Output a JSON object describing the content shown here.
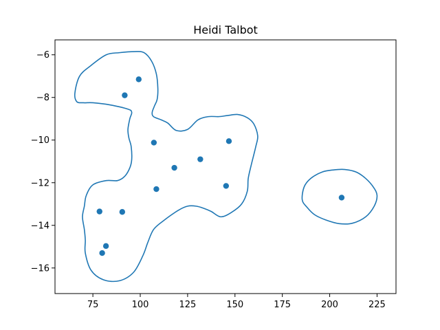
{
  "chart_data": {
    "type": "scatter",
    "title": "Heidi Talbot",
    "xlabel": "",
    "ylabel": "",
    "xlim": [
      55,
      235
    ],
    "ylim": [
      -17.2,
      -5.3
    ],
    "xticks": [
      75,
      100,
      125,
      150,
      175,
      200,
      225
    ],
    "yticks": [
      -16,
      -14,
      -12,
      -10,
      -8,
      -6
    ],
    "xtick_labels": [
      "75",
      "100",
      "125",
      "150",
      "175",
      "200",
      "225"
    ],
    "ytick_labels": [
      "−16",
      "−14",
      "−12",
      "−10",
      "−8",
      "−6"
    ],
    "grid": false,
    "color": "#1f77b4",
    "points": [
      {
        "x": 99.2,
        "y": -7.15
      },
      {
        "x": 91.8,
        "y": -7.9
      },
      {
        "x": 107.2,
        "y": -10.12
      },
      {
        "x": 146.8,
        "y": -10.05
      },
      {
        "x": 131.7,
        "y": -10.9
      },
      {
        "x": 118.0,
        "y": -11.3
      },
      {
        "x": 108.5,
        "y": -12.3
      },
      {
        "x": 145.3,
        "y": -12.15
      },
      {
        "x": 78.5,
        "y": -13.35
      },
      {
        "x": 90.5,
        "y": -13.37
      },
      {
        "x": 81.9,
        "y": -14.97
      },
      {
        "x": 79.9,
        "y": -15.3
      },
      {
        "x": 206.3,
        "y": -12.7
      }
    ],
    "contours": [
      [
        [
          65.5,
          -7.8
        ],
        [
          68.0,
          -7.0
        ],
        [
          74.0,
          -6.5
        ],
        [
          82.0,
          -6.0
        ],
        [
          89.0,
          -5.9
        ],
        [
          97.0,
          -5.85
        ],
        [
          102.0,
          -5.9
        ],
        [
          106.0,
          -6.3
        ],
        [
          108.5,
          -6.9
        ],
        [
          109.3,
          -7.6
        ],
        [
          108.9,
          -8.1
        ],
        [
          107.5,
          -8.4
        ],
        [
          106.3,
          -8.7
        ],
        [
          107.0,
          -8.9
        ],
        [
          111.0,
          -9.05
        ],
        [
          114.5,
          -9.2
        ],
        [
          119.0,
          -9.55
        ],
        [
          125.0,
          -9.5
        ],
        [
          130.5,
          -9.05
        ],
        [
          136.0,
          -8.9
        ],
        [
          141.5,
          -8.9
        ],
        [
          146.0,
          -8.85
        ],
        [
          151.5,
          -8.8
        ],
        [
          156.5,
          -8.95
        ],
        [
          160.0,
          -9.25
        ],
        [
          162.0,
          -9.8
        ],
        [
          161.0,
          -10.3
        ],
        [
          158.5,
          -11.2
        ],
        [
          157.0,
          -11.8
        ],
        [
          156.5,
          -12.4
        ],
        [
          153.5,
          -13.0
        ],
        [
          148.0,
          -13.4
        ],
        [
          142.5,
          -13.6
        ],
        [
          137.5,
          -13.35
        ],
        [
          133.5,
          -13.2
        ],
        [
          129.5,
          -13.1
        ],
        [
          125.0,
          -13.1
        ],
        [
          120.0,
          -13.3
        ],
        [
          112.0,
          -13.8
        ],
        [
          107.0,
          -14.2
        ],
        [
          104.0,
          -14.8
        ],
        [
          101.5,
          -15.4
        ],
        [
          96.5,
          -16.2
        ],
        [
          89.0,
          -16.6
        ],
        [
          80.5,
          -16.55
        ],
        [
          74.0,
          -16.1
        ],
        [
          71.0,
          -15.3
        ],
        [
          71.0,
          -14.7
        ],
        [
          70.5,
          -14.2
        ],
        [
          69.5,
          -13.6
        ],
        [
          70.5,
          -13.1
        ],
        [
          71.5,
          -12.6
        ],
        [
          75.0,
          -12.1
        ],
        [
          82.0,
          -11.9
        ],
        [
          88.0,
          -11.9
        ],
        [
          91.8,
          -11.7
        ],
        [
          94.5,
          -11.3
        ],
        [
          95.5,
          -10.9
        ],
        [
          95.2,
          -10.3
        ],
        [
          94.0,
          -9.9
        ],
        [
          93.5,
          -9.5
        ],
        [
          94.5,
          -9.0
        ],
        [
          95.5,
          -8.7
        ],
        [
          93.5,
          -8.55
        ],
        [
          84.0,
          -8.35
        ],
        [
          75.0,
          -8.25
        ],
        [
          70.0,
          -8.25
        ],
        [
          66.5,
          -8.2
        ]
      ],
      [
        [
          185.5,
          -12.8
        ],
        [
          186.5,
          -12.2
        ],
        [
          190.0,
          -11.8
        ],
        [
          196.0,
          -11.5
        ],
        [
          202.0,
          -11.4
        ],
        [
          208.0,
          -11.38
        ],
        [
          214.0,
          -11.5
        ],
        [
          219.0,
          -11.8
        ],
        [
          223.0,
          -12.2
        ],
        [
          225.0,
          -12.6
        ],
        [
          223.5,
          -13.1
        ],
        [
          219.0,
          -13.6
        ],
        [
          212.0,
          -13.9
        ],
        [
          205.0,
          -13.92
        ],
        [
          198.0,
          -13.75
        ],
        [
          192.0,
          -13.5
        ],
        [
          188.0,
          -13.15
        ]
      ]
    ]
  }
}
